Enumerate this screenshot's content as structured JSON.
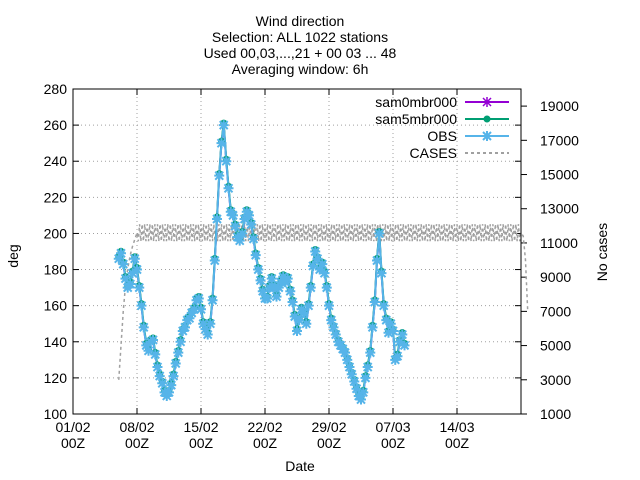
{
  "chart_data": {
    "type": "line",
    "title_lines": [
      "Wind direction",
      "Selection: ALL   1022 stations",
      "Used 00,03,...,21 + 00 03 ... 48",
      "Averaging window:  6h"
    ],
    "xlabel": "Date",
    "ylabel": "deg",
    "y2label": "No cases",
    "xlim": [
      0,
      14
    ],
    "ylim": [
      100,
      280
    ],
    "y2lim": [
      1000,
      20000
    ],
    "x_ticks": [
      {
        "x": 0,
        "line1": "01/02",
        "line2": "00Z"
      },
      {
        "x": 2,
        "line1": "08/02",
        "line2": "00Z"
      },
      {
        "x": 4,
        "line1": "15/02",
        "line2": "00Z"
      },
      {
        "x": 6,
        "line1": "22/02",
        "line2": "00Z"
      },
      {
        "x": 8,
        "line1": "29/02",
        "line2": "00Z"
      },
      {
        "x": 10,
        "line1": "07/03",
        "line2": "00Z"
      },
      {
        "x": 12,
        "line1": "14/03",
        "line2": "00Z"
      }
    ],
    "y_ticks": [
      "100",
      "120",
      "140",
      "160",
      "180",
      "200",
      "220",
      "240",
      "260",
      "280"
    ],
    "y2_ticks": [
      "1000",
      "3000",
      "5000",
      "7000",
      "9000",
      "11000",
      "13000",
      "15000",
      "17000",
      "19000"
    ],
    "legend_position": "top-right",
    "series": [
      {
        "name": "sam0mbr000",
        "color": "#9400d3",
        "marker": "plus"
      },
      {
        "name": "sam5mbr000",
        "color": "#009e73",
        "marker": "circle"
      },
      {
        "name": "OBS",
        "color": "#56b4e9",
        "marker": "star"
      },
      {
        "name": "CASES",
        "color": "#a0a0a0",
        "marker": "none",
        "dashed": true,
        "axis": "y2"
      }
    ],
    "wind_points": [
      [
        1.43,
        186
      ],
      [
        1.5,
        189
      ],
      [
        1.57,
        183
      ],
      [
        1.64,
        175
      ],
      [
        1.71,
        170
      ],
      [
        1.79,
        172
      ],
      [
        1.86,
        178
      ],
      [
        1.93,
        186
      ],
      [
        2.0,
        180
      ],
      [
        2.07,
        170
      ],
      [
        2.14,
        160
      ],
      [
        2.21,
        148
      ],
      [
        2.29,
        138
      ],
      [
        2.36,
        135
      ],
      [
        2.43,
        140
      ],
      [
        2.5,
        141
      ],
      [
        2.57,
        133
      ],
      [
        2.64,
        126
      ],
      [
        2.71,
        121
      ],
      [
        2.79,
        117
      ],
      [
        2.86,
        112
      ],
      [
        2.93,
        110
      ],
      [
        3.0,
        112
      ],
      [
        3.07,
        116
      ],
      [
        3.14,
        121
      ],
      [
        3.21,
        128
      ],
      [
        3.29,
        134
      ],
      [
        3.36,
        140
      ],
      [
        3.43,
        146
      ],
      [
        3.5,
        148
      ],
      [
        3.57,
        152
      ],
      [
        3.64,
        153
      ],
      [
        3.71,
        156
      ],
      [
        3.79,
        158
      ],
      [
        3.86,
        163
      ],
      [
        3.93,
        164
      ],
      [
        4.0,
        158
      ],
      [
        4.07,
        150
      ],
      [
        4.14,
        147
      ],
      [
        4.21,
        144
      ],
      [
        4.29,
        150
      ],
      [
        4.36,
        163
      ],
      [
        4.43,
        185
      ],
      [
        4.5,
        208
      ],
      [
        4.57,
        232
      ],
      [
        4.64,
        250
      ],
      [
        4.71,
        260
      ],
      [
        4.79,
        240
      ],
      [
        4.86,
        225
      ],
      [
        4.93,
        212
      ],
      [
        5.0,
        210
      ],
      [
        5.07,
        204
      ],
      [
        5.14,
        198
      ],
      [
        5.21,
        196
      ],
      [
        5.29,
        200
      ],
      [
        5.36,
        208
      ],
      [
        5.43,
        212
      ],
      [
        5.5,
        210
      ],
      [
        5.57,
        205
      ],
      [
        5.64,
        197
      ],
      [
        5.71,
        188
      ],
      [
        5.79,
        180
      ],
      [
        5.86,
        174
      ],
      [
        5.93,
        168
      ],
      [
        6.0,
        164
      ],
      [
        6.07,
        164
      ],
      [
        6.14,
        170
      ],
      [
        6.21,
        175
      ],
      [
        6.29,
        170
      ],
      [
        6.36,
        165
      ],
      [
        6.43,
        170
      ],
      [
        6.5,
        173
      ],
      [
        6.57,
        176
      ],
      [
        6.64,
        173
      ],
      [
        6.71,
        175
      ],
      [
        6.79,
        168
      ],
      [
        6.86,
        162
      ],
      [
        6.93,
        154
      ],
      [
        7.0,
        146
      ],
      [
        7.07,
        152
      ],
      [
        7.14,
        158
      ],
      [
        7.21,
        156
      ],
      [
        7.29,
        150
      ],
      [
        7.36,
        160
      ],
      [
        7.43,
        170
      ],
      [
        7.5,
        182
      ],
      [
        7.57,
        190
      ],
      [
        7.64,
        186
      ],
      [
        7.71,
        180
      ],
      [
        7.79,
        183
      ],
      [
        7.86,
        178
      ],
      [
        7.93,
        170
      ],
      [
        8.0,
        160
      ],
      [
        8.07,
        152
      ],
      [
        8.14,
        148
      ],
      [
        8.21,
        144
      ],
      [
        8.29,
        140
      ],
      [
        8.36,
        138
      ],
      [
        8.43,
        136
      ],
      [
        8.5,
        134
      ],
      [
        8.57,
        130
      ],
      [
        8.64,
        126
      ],
      [
        8.71,
        122
      ],
      [
        8.79,
        118
      ],
      [
        8.86,
        114
      ],
      [
        8.93,
        110
      ],
      [
        9.0,
        108
      ],
      [
        9.07,
        112
      ],
      [
        9.14,
        120
      ],
      [
        9.21,
        126
      ],
      [
        9.29,
        134
      ],
      [
        9.36,
        148
      ],
      [
        9.43,
        162
      ],
      [
        9.5,
        185
      ],
      [
        9.57,
        200
      ],
      [
        9.64,
        178
      ],
      [
        9.71,
        160
      ],
      [
        9.79,
        152
      ],
      [
        9.86,
        145
      ],
      [
        9.93,
        150
      ],
      [
        10.0,
        146
      ],
      [
        10.07,
        130
      ],
      [
        10.14,
        132
      ],
      [
        10.21,
        140
      ],
      [
        10.29,
        144
      ],
      [
        10.36,
        138
      ]
    ],
    "cases_points": [
      [
        1.43,
        3000
      ],
      [
        1.5,
        5000
      ],
      [
        1.57,
        7000
      ],
      [
        1.64,
        8500
      ],
      [
        1.71,
        9500
      ],
      [
        1.79,
        10300
      ],
      [
        1.86,
        10800
      ],
      [
        1.93,
        11200
      ],
      [
        2.0,
        11600
      ],
      [
        14.0,
        11600
      ],
      [
        14.07,
        11400
      ],
      [
        14.14,
        10000
      ],
      [
        14.21,
        7000
      ]
    ]
  }
}
